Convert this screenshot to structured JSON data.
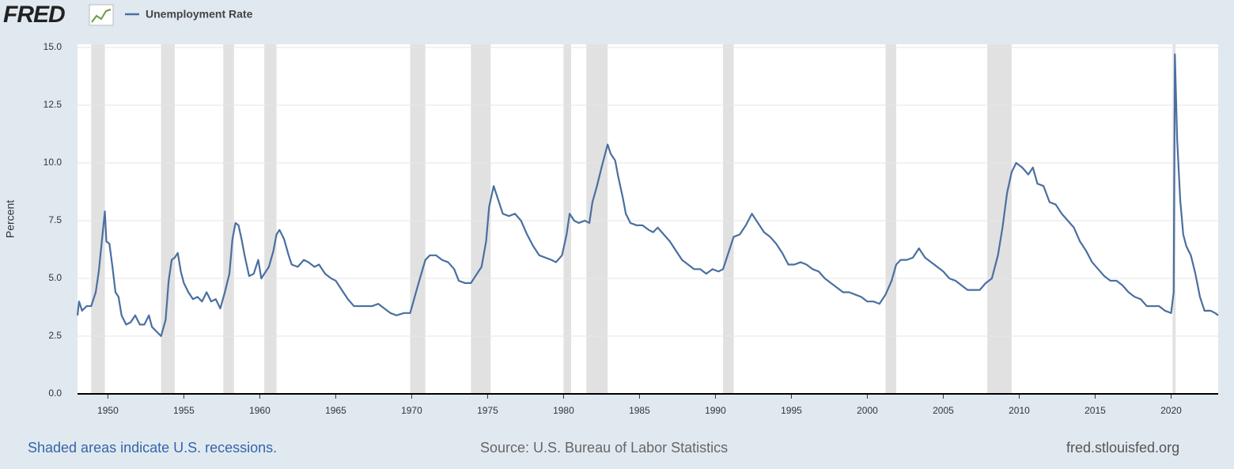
{
  "chart_data": {
    "type": "line",
    "logo": "FRED",
    "ylabel": "Percent",
    "note": "Shaded areas indicate U.S. recessions.",
    "source": "Source: U.S. Bureau of Labor Statistics",
    "url": "fred.stlouisfed.org",
    "xlim": [
      1948,
      2023.1
    ],
    "ylim": [
      0,
      15
    ],
    "xticks": [
      1950,
      1955,
      1960,
      1965,
      1970,
      1975,
      1980,
      1985,
      1990,
      1995,
      2000,
      2005,
      2010,
      2015,
      2020
    ],
    "yticks": [
      {
        "value": 0,
        "label": "0.0"
      },
      {
        "value": 2.5,
        "label": "2.5"
      },
      {
        "value": 5,
        "label": "5.0"
      },
      {
        "value": 7.5,
        "label": "7.5"
      },
      {
        "value": 10,
        "label": "10.0"
      },
      {
        "value": 12.5,
        "label": "12.5"
      },
      {
        "value": 15,
        "label": "15.0"
      }
    ],
    "grid": true,
    "recession_color": "#e1e1e1",
    "recessions": [
      [
        1948.9,
        1949.8
      ],
      [
        1953.5,
        1954.4
      ],
      [
        1957.6,
        1958.3
      ],
      [
        1960.3,
        1961.1
      ],
      [
        1969.9,
        1970.9
      ],
      [
        1973.9,
        1975.2
      ],
      [
        1980.0,
        1980.5
      ],
      [
        1981.5,
        1982.9
      ],
      [
        1990.5,
        1991.2
      ],
      [
        2001.2,
        2001.9
      ],
      [
        2007.9,
        2009.5
      ],
      [
        2020.1,
        2020.3
      ]
    ],
    "x": [
      1948.0,
      1948.1,
      1948.3,
      1948.6,
      1948.9,
      1949.2,
      1949.4,
      1949.6,
      1949.8,
      1949.9,
      1950.1,
      1950.3,
      1950.5,
      1950.7,
      1950.9,
      1951.2,
      1951.5,
      1951.8,
      1952.1,
      1952.4,
      1952.7,
      1952.9,
      1953.2,
      1953.5,
      1953.8,
      1954.0,
      1954.2,
      1954.4,
      1954.6,
      1954.8,
      1955.0,
      1955.3,
      1955.6,
      1955.9,
      1956.2,
      1956.5,
      1956.8,
      1957.1,
      1957.4,
      1957.7,
      1958.0,
      1958.2,
      1958.4,
      1958.6,
      1958.8,
      1959.0,
      1959.3,
      1959.6,
      1959.9,
      1960.1,
      1960.3,
      1960.6,
      1960.9,
      1961.1,
      1961.3,
      1961.6,
      1961.9,
      1962.1,
      1962.5,
      1962.9,
      1963.2,
      1963.6,
      1963.9,
      1964.3,
      1964.7,
      1965.0,
      1965.4,
      1965.8,
      1966.2,
      1966.6,
      1967.0,
      1967.4,
      1967.8,
      1968.2,
      1968.6,
      1969.0,
      1969.5,
      1969.9,
      1970.2,
      1970.5,
      1970.9,
      1971.2,
      1971.6,
      1972.0,
      1972.4,
      1972.8,
      1973.1,
      1973.5,
      1973.9,
      1974.2,
      1974.6,
      1974.9,
      1975.1,
      1975.4,
      1975.7,
      1976.0,
      1976.4,
      1976.8,
      1977.2,
      1977.6,
      1978.0,
      1978.4,
      1978.8,
      1979.2,
      1979.5,
      1979.9,
      1980.2,
      1980.4,
      1980.7,
      1981.0,
      1981.4,
      1981.7,
      1981.9,
      1982.2,
      1982.5,
      1982.9,
      1983.1,
      1983.4,
      1983.6,
      1983.9,
      1984.1,
      1984.4,
      1984.8,
      1985.2,
      1985.6,
      1985.9,
      1986.2,
      1986.6,
      1987.0,
      1987.4,
      1987.8,
      1988.2,
      1988.6,
      1989.0,
      1989.4,
      1989.8,
      1990.2,
      1990.5,
      1990.9,
      1991.2,
      1991.6,
      1992.0,
      1992.4,
      1992.8,
      1993.2,
      1993.6,
      1994.0,
      1994.4,
      1994.8,
      1995.2,
      1995.6,
      1996.0,
      1996.4,
      1996.8,
      1997.2,
      1997.6,
      1998.0,
      1998.4,
      1998.8,
      1999.2,
      1999.6,
      2000.0,
      2000.4,
      2000.8,
      2001.2,
      2001.6,
      2001.9,
      2002.2,
      2002.6,
      2003.0,
      2003.4,
      2003.8,
      2004.2,
      2004.6,
      2005.0,
      2005.4,
      2005.8,
      2006.2,
      2006.6,
      2007.0,
      2007.4,
      2007.8,
      2008.2,
      2008.6,
      2008.9,
      2009.2,
      2009.5,
      2009.8,
      2010.2,
      2010.6,
      2010.9,
      2011.2,
      2011.6,
      2012.0,
      2012.4,
      2012.8,
      2013.2,
      2013.6,
      2014.0,
      2014.4,
      2014.8,
      2015.2,
      2015.6,
      2016.0,
      2016.4,
      2016.8,
      2017.2,
      2017.6,
      2018.0,
      2018.4,
      2018.8,
      2019.2,
      2019.6,
      2020.0,
      2020.17,
      2020.25,
      2020.4,
      2020.6,
      2020.8,
      2021.0,
      2021.3,
      2021.6,
      2021.9,
      2022.2,
      2022.6,
      2022.9,
      2023.1
    ],
    "series": [
      {
        "name": "Unemployment Rate",
        "color": "#4a6fa0",
        "values": [
          3.4,
          4.0,
          3.6,
          3.8,
          3.8,
          4.4,
          5.3,
          6.6,
          7.9,
          6.6,
          6.5,
          5.5,
          4.4,
          4.2,
          3.4,
          3.0,
          3.1,
          3.4,
          3.0,
          3.0,
          3.4,
          2.9,
          2.7,
          2.5,
          3.2,
          4.9,
          5.8,
          5.9,
          6.1,
          5.3,
          4.8,
          4.4,
          4.1,
          4.2,
          4.0,
          4.4,
          4.0,
          4.1,
          3.7,
          4.4,
          5.2,
          6.7,
          7.4,
          7.3,
          6.7,
          6.0,
          5.1,
          5.2,
          5.8,
          5.0,
          5.2,
          5.5,
          6.2,
          6.9,
          7.1,
          6.7,
          6.0,
          5.6,
          5.5,
          5.8,
          5.7,
          5.5,
          5.6,
          5.2,
          5.0,
          4.9,
          4.5,
          4.1,
          3.8,
          3.8,
          3.8,
          3.8,
          3.9,
          3.7,
          3.5,
          3.4,
          3.5,
          3.5,
          4.2,
          4.9,
          5.8,
          6.0,
          6.0,
          5.8,
          5.7,
          5.4,
          4.9,
          4.8,
          4.8,
          5.1,
          5.5,
          6.6,
          8.1,
          9.0,
          8.4,
          7.8,
          7.7,
          7.8,
          7.5,
          6.9,
          6.4,
          6.0,
          5.9,
          5.8,
          5.7,
          6.0,
          6.9,
          7.8,
          7.5,
          7.4,
          7.5,
          7.4,
          8.3,
          9.0,
          9.8,
          10.8,
          10.4,
          10.1,
          9.4,
          8.5,
          7.8,
          7.4,
          7.3,
          7.3,
          7.1,
          7.0,
          7.2,
          6.9,
          6.6,
          6.2,
          5.8,
          5.6,
          5.4,
          5.4,
          5.2,
          5.4,
          5.3,
          5.4,
          6.2,
          6.8,
          6.9,
          7.3,
          7.8,
          7.4,
          7.0,
          6.8,
          6.5,
          6.1,
          5.6,
          5.6,
          5.7,
          5.6,
          5.4,
          5.3,
          5.0,
          4.8,
          4.6,
          4.4,
          4.4,
          4.3,
          4.2,
          4.0,
          4.0,
          3.9,
          4.3,
          4.9,
          5.6,
          5.8,
          5.8,
          5.9,
          6.3,
          5.9,
          5.7,
          5.5,
          5.3,
          5.0,
          4.9,
          4.7,
          4.5,
          4.5,
          4.5,
          4.8,
          5.0,
          6.0,
          7.2,
          8.7,
          9.6,
          10.0,
          9.8,
          9.5,
          9.8,
          9.1,
          9.0,
          8.3,
          8.2,
          7.8,
          7.5,
          7.2,
          6.6,
          6.2,
          5.7,
          5.4,
          5.1,
          4.9,
          4.9,
          4.7,
          4.4,
          4.2,
          4.1,
          3.8,
          3.8,
          3.8,
          3.6,
          3.5,
          4.4,
          14.7,
          11.0,
          8.4,
          6.9,
          6.4,
          6.0,
          5.2,
          4.2,
          3.6,
          3.6,
          3.5,
          3.4
        ]
      }
    ]
  }
}
